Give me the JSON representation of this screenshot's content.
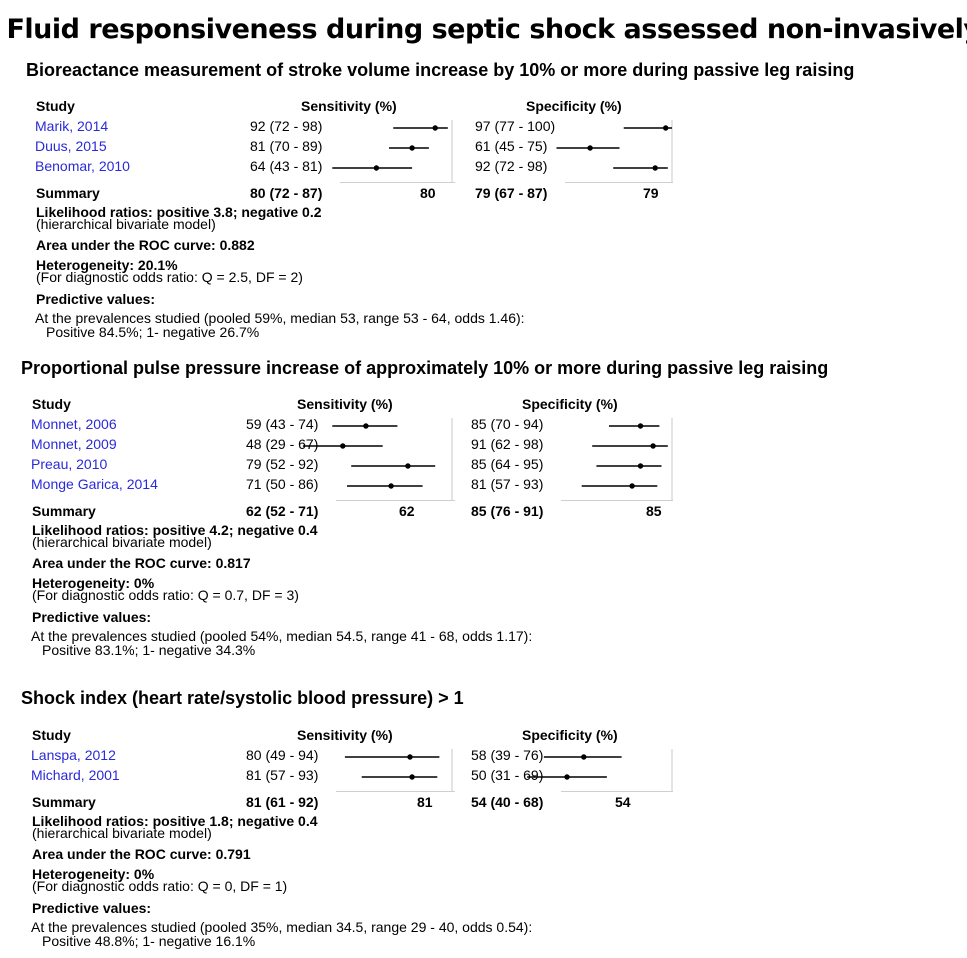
{
  "title": "Fluid responsiveness during septic shock assessed non-invasively",
  "column_headers": {
    "study": "Study",
    "sensitivity": "Sensitivity (%)",
    "specificity": "Specificity (%)"
  },
  "sections": [
    {
      "title": "Bioreactance measurement of stroke volume increase by 10% or more during passive leg raising",
      "studies": [
        {
          "name": "Marik, 2014",
          "sens_text": "92 (72 - 98)",
          "spec_text": "97 (77 - 100)"
        },
        {
          "name": "Duus, 2015",
          "sens_text": "81 (70 - 89)",
          "spec_text": "61 (45 - 75)"
        },
        {
          "name": "Benomar, 2010",
          "sens_text": "64 (43 - 81)",
          "spec_text": "92 (72 - 98)"
        }
      ],
      "summary": {
        "label": "Summary",
        "sens_text": "80 (72 - 87)",
        "sens_point": "80",
        "spec_text": "79 (67 - 87)",
        "spec_point": "79"
      },
      "likelihood": "Likelihood ratios: positive 3.8; negative 0.2",
      "likelihood_note": "(hierarchical bivariate model)",
      "auc": "Area under the ROC curve: 0.882",
      "heterogeneity": "Heterogeneity: 20.1%",
      "heterogeneity_note": "(For diagnostic odds ratio: Q = 2.5, DF = 2)",
      "predictive_label": "Predictive values:",
      "prevalence": "At the prevalences studied (pooled 59%, median 53, range 53 - 64, odds 1.46):",
      "predictive_values": "Positive 84.5%; 1- negative 26.7%"
    },
    {
      "title": "Proportional pulse pressure increase of approximately 10% or more during passive leg raising",
      "studies": [
        {
          "name": "Monnet, 2006",
          "sens_text": "59 (43 - 74)",
          "spec_text": "85 (70 - 94)"
        },
        {
          "name": "Monnet, 2009",
          "sens_text": "48 (29 - 67)",
          "spec_text": "91 (62 - 98)"
        },
        {
          "name": "Preau, 2010",
          "sens_text": "79 (52 - 92)",
          "spec_text": "85 (64 - 95)"
        },
        {
          "name": "Monge Garica, 2014",
          "sens_text": "71 (50 - 86)",
          "spec_text": "81 (57 - 93)"
        }
      ],
      "summary": {
        "label": "Summary",
        "sens_text": "62 (52 - 71)",
        "sens_point": "62",
        "spec_text": "85 (76 - 91)",
        "spec_point": "85"
      },
      "likelihood": "Likelihood ratios: positive 4.2; negative 0.4",
      "likelihood_note": "(hierarchical bivariate model)",
      "auc": "Area under the ROC curve: 0.817",
      "heterogeneity": "Heterogeneity: 0%",
      "heterogeneity_note": "(For diagnostic odds ratio: Q = 0.7, DF = 3)",
      "predictive_label": "Predictive values:",
      "prevalence": "At the prevalences studied (pooled 54%, median 54.5, range 41 - 68, odds 1.17):",
      "predictive_values": "Positive 83.1%; 1- negative 34.3%"
    },
    {
      "title": "Shock index (heart rate/systolic blood pressure) > 1",
      "studies": [
        {
          "name": "Lanspa, 2012",
          "sens_text": "80 (49 - 94)",
          "spec_text": "58 (39 - 76)"
        },
        {
          "name": "Michard, 2001",
          "sens_text": "81 (57 - 93)",
          "spec_text": "50 (31 - 69)"
        }
      ],
      "summary": {
        "label": "Summary",
        "sens_text": "81 (61 - 92)",
        "sens_point": "81",
        "spec_text": "54 (40 - 68)",
        "spec_point": "54"
      },
      "likelihood": "Likelihood ratios: positive 1.8; negative 0.4",
      "likelihood_note": "(hierarchical bivariate model)",
      "auc": "Area under the ROC curve: 0.791",
      "heterogeneity": "Heterogeneity: 0%",
      "heterogeneity_note": "(For diagnostic odds ratio: Q = 0, DF = 1)",
      "predictive_label": "Predictive values:",
      "prevalence": "At the prevalences studied (pooled 35%, median 34.5, range 29 - 40, odds 0.54):",
      "predictive_values": "Positive 48.8%; 1- negative 16.1%"
    }
  ],
  "chart_data": {
    "type": "forest",
    "title": "Fluid responsiveness during septic shock assessed non-invasively",
    "axis_range": [
      0,
      100
    ],
    "panels": [
      {
        "name": "Bioreactance measurement of stroke volume increase by 10% or more during passive leg raising",
        "sensitivity": {
          "points": [
            92,
            81,
            64
          ],
          "lower": [
            72,
            70,
            43
          ],
          "upper": [
            98,
            89,
            81
          ],
          "summary": 80
        },
        "specificity": {
          "points": [
            97,
            61,
            92
          ],
          "lower": [
            77,
            45,
            72
          ],
          "upper": [
            100,
            75,
            98
          ],
          "summary": 79
        }
      },
      {
        "name": "Proportional pulse pressure increase of approximately 10% or more during passive leg raising",
        "sensitivity": {
          "points": [
            59,
            48,
            79,
            71
          ],
          "lower": [
            43,
            29,
            52,
            50
          ],
          "upper": [
            74,
            67,
            92,
            86
          ],
          "summary": 62
        },
        "specificity": {
          "points": [
            85,
            91,
            85,
            81
          ],
          "lower": [
            70,
            62,
            64,
            57
          ],
          "upper": [
            94,
            98,
            95,
            93
          ],
          "summary": 85
        }
      },
      {
        "name": "Shock index (heart rate/systolic blood pressure) > 1",
        "sensitivity": {
          "points": [
            80,
            81
          ],
          "lower": [
            49,
            57
          ],
          "upper": [
            94,
            93
          ],
          "summary": 81
        },
        "specificity": {
          "points": [
            58,
            50
          ],
          "lower": [
            39,
            31
          ],
          "upper": [
            76,
            69
          ],
          "summary": 54
        }
      }
    ]
  }
}
